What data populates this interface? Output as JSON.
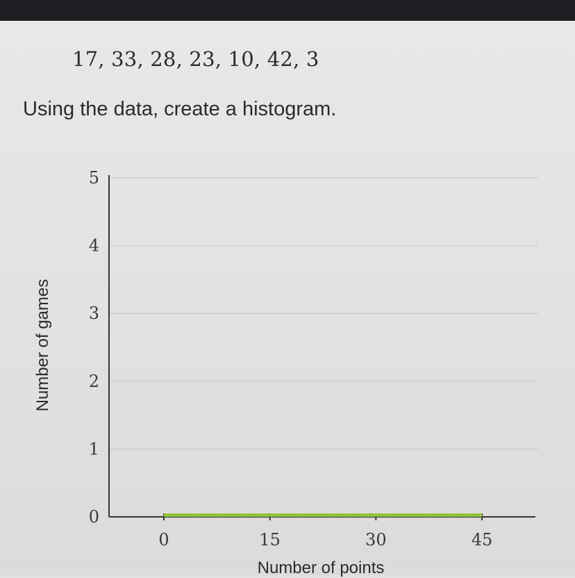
{
  "dataset_text": "17, 33, 28, 23, 10, 42, 3",
  "instruction": "Using the data, create a histogram.",
  "chart_data": {
    "type": "bar",
    "xlabel": "Number of points",
    "ylabel": "Number of games",
    "x_ticks": [
      0,
      15,
      30,
      45
    ],
    "y_ticks": [
      0,
      1,
      2,
      3,
      4,
      5
    ],
    "xlim": [
      0,
      45
    ],
    "ylim": [
      0,
      5
    ],
    "bins": [
      [
        0,
        15
      ],
      [
        15,
        30
      ],
      [
        30,
        45
      ]
    ],
    "values": [
      0,
      0,
      0
    ],
    "grid": true,
    "bar_color": "#8fc53a",
    "grid_color": "#c8cdd8",
    "axis_color": "#333333"
  }
}
